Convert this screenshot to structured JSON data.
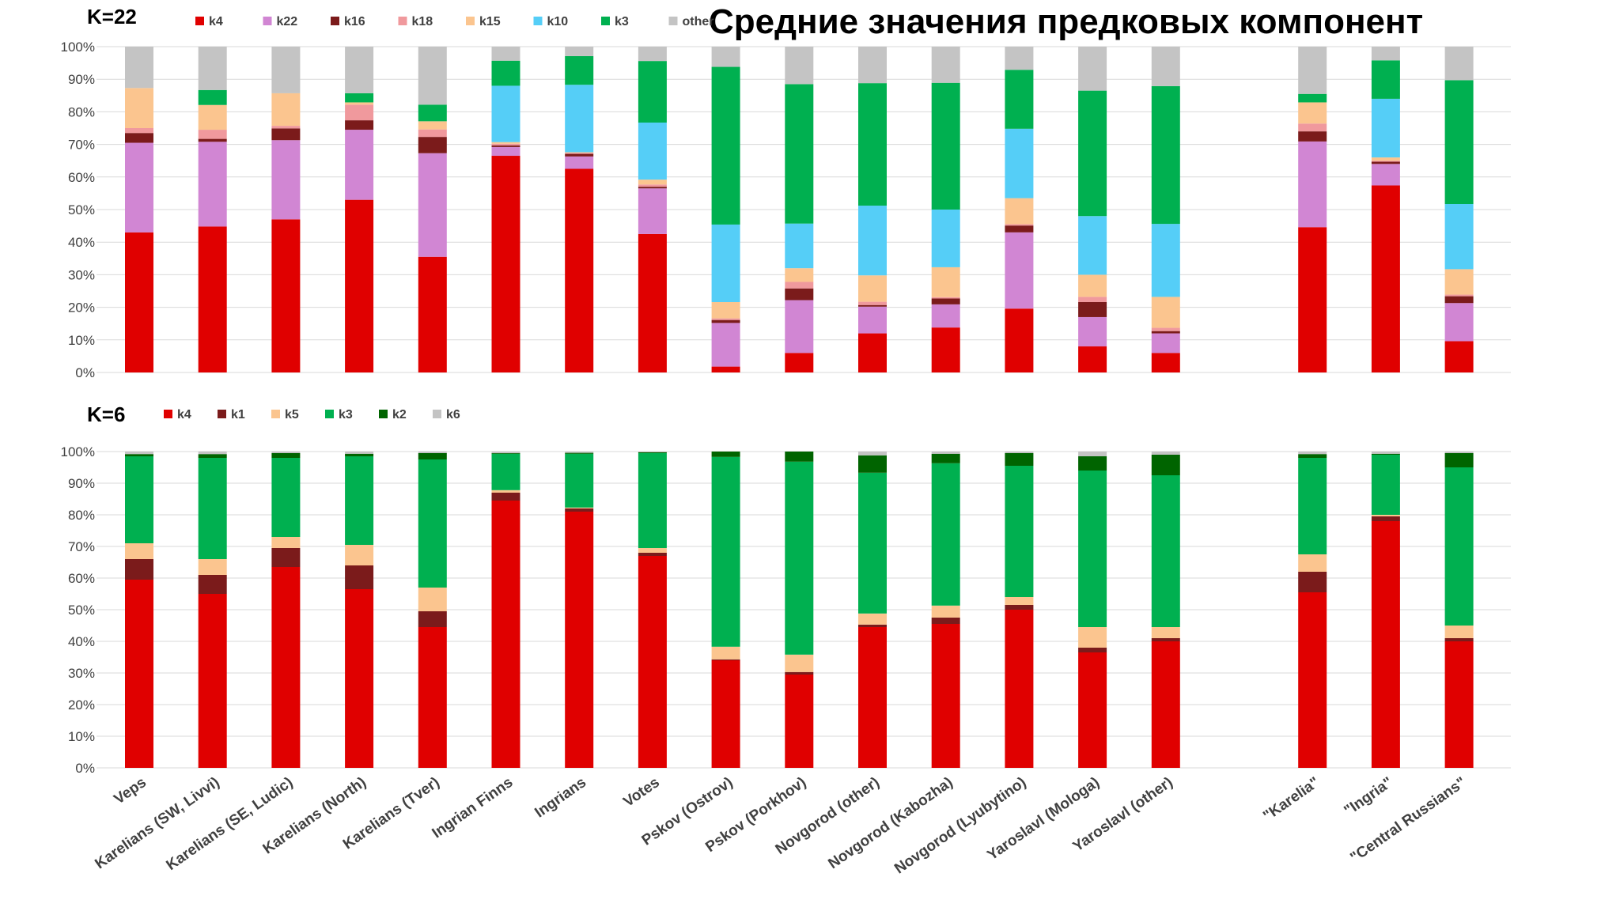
{
  "title": "Средние значения предковых компонент",
  "chart_data": [
    {
      "type": "bar",
      "stacked": true,
      "label": "K=22",
      "ylim": [
        0,
        100
      ],
      "yticks": [
        "0%",
        "10%",
        "20%",
        "30%",
        "40%",
        "50%",
        "60%",
        "70%",
        "80%",
        "90%",
        "100%"
      ],
      "grid": true,
      "legend": "top",
      "categories": [
        "Veps",
        "Karelians (SW, Livvi)",
        "Karelians (SE, Ludic)",
        "Karelians (North)",
        "Karelians (Tver)",
        "Ingrian Finns",
        "Ingrians",
        "Votes",
        "Pskov (Ostrov)",
        "Pskov (Porkhov)",
        "Novgorod (other)",
        "Novgorod (Kabozha)",
        "Novgorod (Lyubytino)",
        "Yaroslavl (Mologa)",
        "Yaroslavl (other)",
        "",
        "\"Karelia\"",
        "\"Ingria\"",
        "\"Central Russians\""
      ],
      "series": [
        {
          "name": "k4",
          "color": "#e00000",
          "values": [
            43,
            44.8,
            47,
            53,
            35.5,
            66.5,
            62.5,
            42.5,
            1.8,
            6,
            12,
            13.8,
            19.6,
            8,
            6,
            null,
            44.6,
            57.4,
            9.6
          ]
        },
        {
          "name": "k22",
          "color": "#d186d3",
          "values": [
            27.5,
            26,
            24.3,
            21.5,
            31.8,
            2.7,
            3.8,
            14,
            13.4,
            16.2,
            8.2,
            7.1,
            23.4,
            9,
            6,
            null,
            26.3,
            6.6,
            11.7
          ]
        },
        {
          "name": "k16",
          "color": "#7b1b1b",
          "values": [
            3,
            0.9,
            3.6,
            2.9,
            5,
            0.5,
            0.8,
            0.5,
            0.9,
            3.6,
            0.5,
            1.8,
            2.1,
            4.6,
            0.7,
            null,
            3.1,
            0.7,
            2.1
          ]
        },
        {
          "name": "k18",
          "color": "#f0999d",
          "values": [
            1.5,
            2.8,
            0.8,
            4.8,
            2.3,
            0.5,
            0.3,
            0.7,
            0.5,
            2,
            1,
            0.4,
            0.4,
            1.6,
            1,
            null,
            2.4,
            0.3,
            0.5
          ]
        },
        {
          "name": "k15",
          "color": "#fbc58f",
          "values": [
            12.3,
            7.6,
            10,
            0.7,
            2.5,
            0.5,
            0.2,
            1.5,
            5,
            4.2,
            8.1,
            9.2,
            8,
            6.8,
            9.5,
            null,
            6.5,
            1,
            7.8
          ]
        },
        {
          "name": "k10",
          "color": "#55cef7",
          "values": [
            0,
            0,
            0,
            0,
            0,
            17.3,
            20.7,
            17.5,
            23.8,
            13.7,
            21.4,
            17.7,
            21.3,
            18,
            22.4,
            null,
            0,
            18,
            20
          ]
        },
        {
          "name": "k3",
          "color": "#00b050",
          "values": [
            0,
            4.6,
            0,
            2.8,
            5.1,
            7.7,
            8.8,
            18.9,
            48.4,
            42.8,
            37.6,
            38.9,
            18.1,
            38.5,
            42.3,
            null,
            2.6,
            11.8,
            38
          ]
        },
        {
          "name": "other",
          "color": "#c4c4c4",
          "values": [
            12.7,
            13.3,
            14.3,
            14.3,
            17.8,
            4.3,
            2.9,
            4.4,
            6.2,
            11.5,
            11.2,
            11.1,
            7.1,
            13.5,
            12.1,
            null,
            14.5,
            4.2,
            10.3
          ]
        }
      ]
    },
    {
      "type": "bar",
      "stacked": true,
      "label": "K=6",
      "ylim": [
        0,
        100
      ],
      "yticks": [
        "0%",
        "10%",
        "20%",
        "30%",
        "40%",
        "50%",
        "60%",
        "70%",
        "80%",
        "90%",
        "100%"
      ],
      "grid": true,
      "legend": "top",
      "categories": [
        "Veps",
        "Karelians (SW, Livvi)",
        "Karelians (SE, Ludic)",
        "Karelians (North)",
        "Karelians (Tver)",
        "Ingrian Finns",
        "Ingrians",
        "Votes",
        "Pskov (Ostrov)",
        "Pskov (Porkhov)",
        "Novgorod (other)",
        "Novgorod (Kabozha)",
        "Novgorod (Lyubytino)",
        "Yaroslavl (Mologa)",
        "Yaroslavl (other)",
        "",
        "\"Karelia\"",
        "\"Ingria\"",
        "\"Central Russians\""
      ],
      "series": [
        {
          "name": "k4",
          "color": "#e00000",
          "values": [
            59.5,
            55,
            63.5,
            56.5,
            44.5,
            84.5,
            81,
            67,
            34,
            29.5,
            44.5,
            45.5,
            50,
            36.5,
            40,
            null,
            55.5,
            78,
            40
          ]
        },
        {
          "name": "k1",
          "color": "#7b1b1b",
          "values": [
            6.5,
            6,
            6,
            7.5,
            5,
            2.5,
            1,
            1,
            0.3,
            0.8,
            0.8,
            2,
            1.5,
            1.5,
            1,
            null,
            6.5,
            1.5,
            1
          ]
        },
        {
          "name": "k5",
          "color": "#fbc58f",
          "values": [
            5,
            5,
            3.5,
            6.5,
            7.5,
            0.8,
            0.3,
            1.5,
            4,
            5.5,
            3.5,
            3.8,
            2.5,
            6.5,
            3.5,
            null,
            5.5,
            0.5,
            4
          ]
        },
        {
          "name": "k3",
          "color": "#00b050",
          "values": [
            27.5,
            32,
            25,
            28,
            40.5,
            11.5,
            17,
            30,
            60,
            61,
            44.5,
            45,
            41.5,
            49.5,
            48,
            null,
            30.5,
            19,
            50
          ]
        },
        {
          "name": "k2",
          "color": "#006400",
          "values": [
            0.7,
            1.2,
            1.5,
            0.8,
            2,
            0.2,
            0.3,
            0.3,
            1.7,
            3.2,
            5.5,
            3,
            4,
            4.5,
            6.5,
            null,
            1.2,
            0.3,
            4.5
          ]
        },
        {
          "name": "k6",
          "color": "#c4c4c4",
          "values": [
            0.8,
            0.8,
            0.5,
            0.7,
            0.5,
            0.5,
            0.4,
            0.2,
            0,
            0,
            1.2,
            0.7,
            0.5,
            1.5,
            1,
            null,
            0.8,
            0.7,
            0.5
          ]
        }
      ]
    }
  ]
}
